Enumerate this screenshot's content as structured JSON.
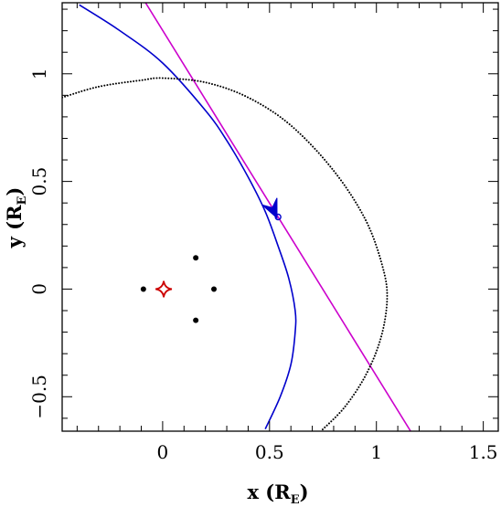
{
  "chart_data": {
    "type": "line",
    "title": "",
    "xlabel": {
      "text": "x (R",
      "sub": "E",
      "close": ")"
    },
    "ylabel": {
      "text": "y (R",
      "sub": "E",
      "close": ")"
    },
    "xlim": [
      -0.47,
      1.57
    ],
    "ylim": [
      -0.66,
      1.33
    ],
    "x_ticks": [
      {
        "value": 0,
        "label": "0"
      },
      {
        "value": 0.5,
        "label": "0.5"
      },
      {
        "value": 1,
        "label": "1"
      },
      {
        "value": 1.5,
        "label": "1.5"
      }
    ],
    "y_ticks": [
      {
        "value": -0.5,
        "label": "−0.5"
      },
      {
        "value": 0,
        "label": "0"
      },
      {
        "value": 0.5,
        "label": "0.5"
      },
      {
        "value": 1,
        "label": "1"
      }
    ],
    "x_minor_step": 0.1,
    "y_minor_step": 0.1,
    "grid": false,
    "legend": "none",
    "series": [
      {
        "style": "solid",
        "color": "#0000cc",
        "x": [
          -0.39,
          -0.2,
          0.0,
          0.2,
          0.3,
          0.4,
          0.48,
          0.54,
          0.59,
          0.62,
          0.62,
          0.6,
          0.55,
          0.48
        ],
        "y": [
          1.32,
          1.2,
          1.05,
          0.83,
          0.69,
          0.52,
          0.36,
          0.2,
          0.05,
          -0.1,
          -0.2,
          -0.35,
          -0.5,
          -0.65
        ]
      },
      {
        "style": "solid",
        "color": "#cc00cc",
        "x": [
          -0.08,
          1.16
        ],
        "y": [
          1.33,
          -0.66
        ]
      },
      {
        "style": "dotted",
        "color": "#000000",
        "x": [
          -0.47,
          -0.3,
          -0.1,
          0.0,
          0.2,
          0.4,
          0.6,
          0.8,
          0.95,
          1.03,
          1.05,
          1.02,
          0.95,
          0.85,
          0.74
        ],
        "y": [
          0.89,
          0.94,
          0.97,
          0.98,
          0.96,
          0.89,
          0.76,
          0.55,
          0.32,
          0.1,
          -0.05,
          -0.23,
          -0.4,
          -0.55,
          -0.66
        ]
      }
    ],
    "markers": [
      {
        "shape": "dot",
        "color": "#000000",
        "x": -0.09,
        "y": 0.0
      },
      {
        "shape": "dot",
        "color": "#000000",
        "x": 0.24,
        "y": 0.0
      },
      {
        "shape": "dot",
        "color": "#000000",
        "x": 0.155,
        "y": 0.145
      },
      {
        "shape": "dot",
        "color": "#000000",
        "x": 0.155,
        "y": -0.145
      },
      {
        "shape": "astroid",
        "color": "#cc0000",
        "x": 0.005,
        "y": 0.0,
        "size": 0.038
      },
      {
        "shape": "ring",
        "color": "#0000cc",
        "x": 0.54,
        "y": 0.335
      },
      {
        "shape": "arrowhead",
        "color": "#0000cc",
        "x": 0.535,
        "y": 0.33,
        "dx": 0.42,
        "dy": -0.92
      }
    ]
  }
}
